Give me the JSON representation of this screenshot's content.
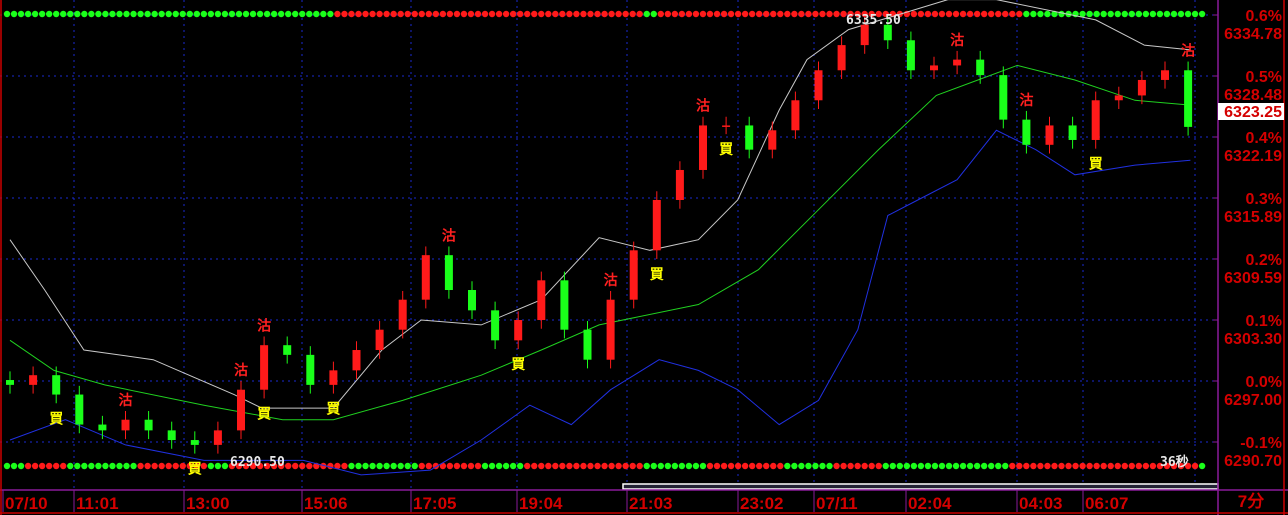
{
  "chart_data": {
    "type": "candlestick",
    "interval_label": "7分",
    "countdown_label": "36秒",
    "current_price": "6323.25",
    "high_label": "6335.50",
    "low_label": "6290.50",
    "y_axis": {
      "price_ticks": [
        "6334.78",
        "6328.48",
        "6322.19",
        "6315.89",
        "6309.59",
        "6303.30",
        "6297.00",
        "6290.70"
      ],
      "pct_ticks": [
        "0.6%",
        "0.5%",
        "0.4%",
        "0.3%",
        "0.2%",
        "0.1%",
        "0.0%",
        "-0.1%"
      ],
      "reference_price": 6297.0,
      "ylim": [
        6285,
        6338
      ]
    },
    "x_axis": {
      "tick_labels": [
        "07/10",
        "11:01",
        "13:00",
        "15:06",
        "17:05",
        "19:04",
        "21:03",
        "23:02",
        "07/11",
        "02:04",
        "04:03",
        "06:07"
      ]
    },
    "grid": true,
    "closes": [
      6296.6,
      6297.6,
      6295.6,
      6292.5,
      6291.9,
      6293.0,
      6291.9,
      6290.9,
      6290.4,
      6291.9,
      6296.1,
      6300.7,
      6299.7,
      6296.6,
      6298.1,
      6300.2,
      6302.3,
      6305.4,
      6310.0,
      6306.4,
      6304.3,
      6301.2,
      6303.3,
      6307.4,
      6302.3,
      6299.2,
      6305.4,
      6310.5,
      6315.7,
      6318.8,
      6323.4,
      6323.4,
      6320.9,
      6322.9,
      6326.0,
      6329.1,
      6331.7,
      6333.8,
      6332.2,
      6329.1,
      6329.6,
      6330.2,
      6328.6,
      6324.0,
      6321.4,
      6323.4,
      6321.9,
      6326.0,
      6326.5,
      6328.1,
      6329.1,
      6323.25
    ],
    "bollinger": {
      "upper": [
        [
          0,
          6311.6
        ],
        [
          1.5,
          6306.4
        ],
        [
          3.2,
          6300.2
        ],
        [
          6.2,
          6299.2
        ],
        [
          9.7,
          6295.6
        ],
        [
          10.9,
          6294.2
        ],
        [
          14,
          6294.2
        ],
        [
          16.1,
          6300.2
        ],
        [
          17.8,
          6303.3
        ],
        [
          20.4,
          6302.8
        ],
        [
          23,
          6305.4
        ],
        [
          25.5,
          6311.8
        ],
        [
          27.7,
          6310.5
        ],
        [
          29.8,
          6311.6
        ],
        [
          31.5,
          6315.7
        ],
        [
          33.3,
          6325.0
        ],
        [
          34.5,
          6330.2
        ],
        [
          36.3,
          6333.3
        ],
        [
          38.4,
          6334.8
        ],
        [
          40.6,
          6336.4
        ],
        [
          42.7,
          6336.4
        ],
        [
          47,
          6334.3
        ],
        [
          49.1,
          6331.7
        ],
        [
          51.1,
          6331.2
        ]
      ],
      "middle": [
        [
          0,
          6301.2
        ],
        [
          1.9,
          6298.1
        ],
        [
          4.1,
          6296.6
        ],
        [
          8.4,
          6294.5
        ],
        [
          11.8,
          6293.0
        ],
        [
          14,
          6293.0
        ],
        [
          17,
          6295.0
        ],
        [
          20.4,
          6297.6
        ],
        [
          23,
          6300.2
        ],
        [
          25.5,
          6302.8
        ],
        [
          29.8,
          6304.9
        ],
        [
          32.4,
          6308.5
        ],
        [
          35,
          6314.7
        ],
        [
          37.6,
          6320.9
        ],
        [
          40.1,
          6326.5
        ],
        [
          41.9,
          6328.1
        ],
        [
          43.6,
          6329.6
        ],
        [
          46.1,
          6328.1
        ],
        [
          48.7,
          6326.0
        ],
        [
          51.1,
          6325.5
        ]
      ],
      "lower": [
        [
          0,
          6290.9
        ],
        [
          2.4,
          6293.0
        ],
        [
          5,
          6290.4
        ],
        [
          8.4,
          6288.8
        ],
        [
          12.7,
          6288.8
        ],
        [
          15.2,
          6287.3
        ],
        [
          18.2,
          6287.8
        ],
        [
          20.4,
          6290.9
        ],
        [
          22.5,
          6294.5
        ],
        [
          24.3,
          6292.5
        ],
        [
          26,
          6296.1
        ],
        [
          28.1,
          6299.2
        ],
        [
          29.8,
          6298.1
        ],
        [
          31.5,
          6296.1
        ],
        [
          33.3,
          6292.5
        ],
        [
          35,
          6295.0
        ],
        [
          36.7,
          6302.3
        ],
        [
          38,
          6314.1
        ],
        [
          39.3,
          6315.7
        ],
        [
          41,
          6317.8
        ],
        [
          42.7,
          6322.9
        ],
        [
          44.4,
          6320.9
        ],
        [
          46.1,
          6318.3
        ],
        [
          48.7,
          6319.3
        ],
        [
          51.1,
          6319.8
        ]
      ]
    },
    "signals": {
      "buy_label": "買",
      "sell_label": "沽",
      "buy_at": [
        2,
        8,
        11,
        14,
        22,
        28,
        31,
        47
      ],
      "sell_at": [
        5,
        10,
        11,
        19,
        26,
        30,
        41,
        44,
        51
      ]
    },
    "dot_rows": {
      "top": [
        [
          "G",
          47
        ],
        [
          "R",
          44
        ],
        [
          "G",
          2
        ],
        [
          "R",
          52
        ],
        [
          "G",
          26
        ]
      ],
      "bottom": [
        [
          "G",
          3
        ],
        [
          "R",
          6
        ],
        [
          "G",
          10
        ],
        [
          "R",
          10
        ],
        [
          "G",
          3
        ],
        [
          "R",
          17
        ],
        [
          "G",
          10
        ],
        [
          "R",
          9
        ],
        [
          "G",
          6
        ],
        [
          "R",
          17
        ],
        [
          "G",
          9
        ],
        [
          "R",
          11
        ],
        [
          "G",
          7
        ],
        [
          "R",
          7
        ],
        [
          "G",
          18
        ],
        [
          "R",
          27
        ],
        [
          "G",
          1
        ]
      ]
    },
    "colors": {
      "up": "#ff1a1a",
      "down": "#1aff1a",
      "upper_band": "#c8c8c8",
      "middle_band": "#20d020",
      "lower_band": "#2030e0",
      "axis_text": "#d40000",
      "grid": "#1a2ad0",
      "frame": "#8a1a9a"
    }
  }
}
